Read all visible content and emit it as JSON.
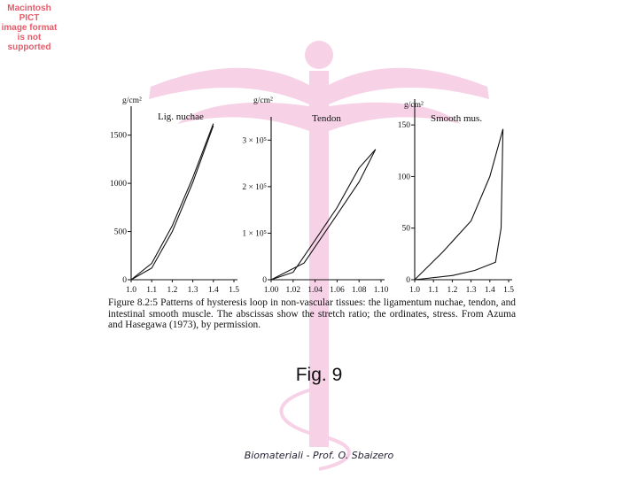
{
  "pict_notice": [
    "Macintosh PICT",
    "image format",
    "is not supported"
  ],
  "colors": {
    "watermark": "#f7d2e6",
    "ink": "#111111",
    "notice": "#e85a6a"
  },
  "chart_data": [
    {
      "type": "line",
      "title": "Lig. nuchae",
      "ylabel": "g/cm²",
      "xlim": [
        1.0,
        1.5
      ],
      "ylim": [
        0,
        1800
      ],
      "x_ticks": [
        "1.0",
        "1.1",
        "1.2",
        "1.3",
        "1.4",
        "1.5"
      ],
      "y_ticks": [
        {
          "v": 0,
          "t": "0"
        },
        {
          "v": 500,
          "t": "500"
        },
        {
          "v": 1000,
          "t": "1000"
        },
        {
          "v": 1500,
          "t": "1500"
        }
      ],
      "series": [
        {
          "x": [
            1.0,
            1.1,
            1.2,
            1.3,
            1.4
          ],
          "y": [
            0,
            170,
            560,
            1060,
            1620
          ]
        },
        {
          "x": [
            1.0,
            1.1,
            1.2,
            1.3,
            1.4
          ],
          "y": [
            0,
            120,
            500,
            1010,
            1600
          ]
        }
      ]
    },
    {
      "type": "line",
      "title": "Tendon",
      "ylabel": "g/cm²",
      "xlim": [
        1.0,
        1.1
      ],
      "ylim": [
        0,
        3.5
      ],
      "x_ticks": [
        "1.00",
        "1.02",
        "1.04",
        "1.06",
        "1.08",
        "1.10"
      ],
      "y_ticks": [
        {
          "v": 0,
          "t": "0"
        },
        {
          "v": 1,
          "t": "1 × 10⁵"
        },
        {
          "v": 2,
          "t": "2 × 10⁵"
        },
        {
          "v": 3,
          "t": "3 × 10⁵"
        }
      ],
      "series": [
        {
          "x": [
            1.0,
            1.02,
            1.04,
            1.06,
            1.08,
            1.095
          ],
          "y": [
            0,
            0.16,
            0.85,
            1.55,
            2.4,
            2.8
          ]
        },
        {
          "x": [
            1.0,
            1.03,
            1.06,
            1.08,
            1.095
          ],
          "y": [
            0,
            0.36,
            1.4,
            2.1,
            2.8
          ]
        }
      ]
    },
    {
      "type": "line",
      "title": "Smooth mus.",
      "ylabel": "g/cm²",
      "xlim": [
        1.0,
        1.5
      ],
      "ylim": [
        0,
        175
      ],
      "x_ticks": [
        "1.0",
        "1.1",
        "1.2",
        "1.3",
        "1.4",
        "1.5"
      ],
      "y_ticks": [
        {
          "v": 0,
          "t": "0"
        },
        {
          "v": 50,
          "t": "50"
        },
        {
          "v": 100,
          "t": "100"
        },
        {
          "v": 150,
          "t": "150"
        }
      ],
      "series": [
        {
          "x": [
            1.0,
            1.15,
            1.3,
            1.4,
            1.47
          ],
          "y": [
            0,
            27,
            57,
            100,
            146
          ]
        },
        {
          "x": [
            1.0,
            1.2,
            1.32,
            1.43,
            1.46,
            1.47
          ],
          "y": [
            0,
            4,
            9,
            17,
            50,
            146
          ]
        }
      ]
    }
  ],
  "caption": {
    "lead": "Figure 8.2:5",
    "text": "Patterns of hysteresis loop in non-vascular tissues: the ligamentum nuchae, tendon, and intestinal smooth muscle. The abscissas show the stretch ratio; the ordinates, stress. From Azuma and Hasegawa (1973), by permission."
  },
  "figure_label": "Fig. 9",
  "footer": "Biomateriali - Prof. O. Sbaizero"
}
